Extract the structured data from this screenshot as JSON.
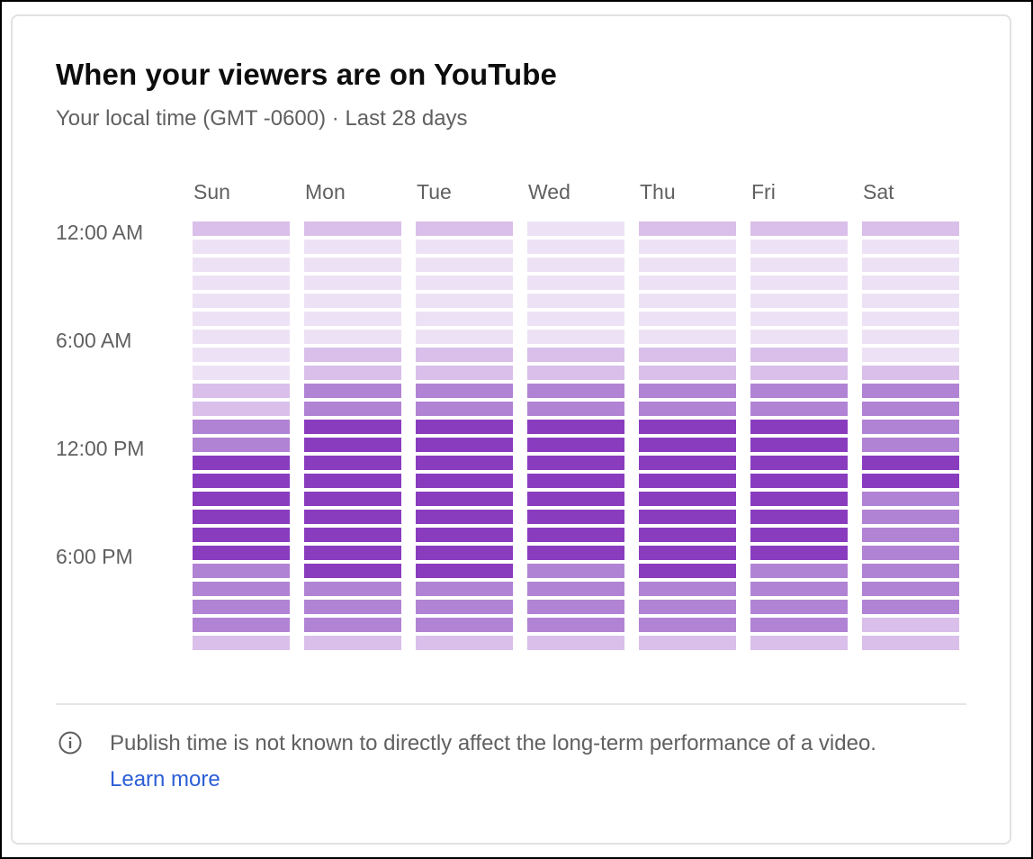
{
  "card": {
    "title": "When your viewers are on YouTube",
    "subtitle": "Your local time (GMT -0600) · Last 28 days"
  },
  "footer": {
    "notice": "Publish time is not known to directly affect the long-term performance of a video.",
    "link_label": "Learn more",
    "icon": "info-icon"
  },
  "chart_data": {
    "type": "heatmap",
    "title": "When your viewers are on YouTube",
    "subtitle": "Your local time (GMT -0600) · Last 28 days",
    "columns": [
      "Sun",
      "Mon",
      "Tue",
      "Wed",
      "Thu",
      "Fri",
      "Sat"
    ],
    "row_tick_labels": [
      "12:00 AM",
      "6:00 AM",
      "12:00 PM",
      "6:00 PM"
    ],
    "row_tick_positions": [
      0,
      6,
      12,
      18
    ],
    "rows_per_column": 24,
    "intensity_scale": [
      1,
      2,
      3,
      4
    ],
    "colors": {
      "1": "#ede2f5",
      "2": "#d9bfe9",
      "3": "#b183d4",
      "4": "#8a3cbf"
    },
    "values": [
      [
        2,
        1,
        1,
        1,
        1,
        1,
        1,
        1,
        1,
        2,
        2,
        3,
        3,
        4,
        4,
        4,
        4,
        4,
        4,
        3,
        3,
        3,
        3,
        2
      ],
      [
        2,
        1,
        1,
        1,
        1,
        1,
        1,
        2,
        2,
        3,
        3,
        4,
        4,
        4,
        4,
        4,
        4,
        4,
        4,
        4,
        3,
        3,
        3,
        2
      ],
      [
        2,
        1,
        1,
        1,
        1,
        1,
        1,
        2,
        2,
        3,
        3,
        4,
        4,
        4,
        4,
        4,
        4,
        4,
        4,
        4,
        3,
        3,
        3,
        2
      ],
      [
        1,
        1,
        1,
        1,
        1,
        1,
        1,
        2,
        2,
        3,
        3,
        4,
        4,
        4,
        4,
        4,
        4,
        4,
        4,
        3,
        3,
        3,
        3,
        2
      ],
      [
        2,
        1,
        1,
        1,
        1,
        1,
        1,
        2,
        2,
        3,
        3,
        4,
        4,
        4,
        4,
        4,
        4,
        4,
        4,
        4,
        3,
        3,
        3,
        2
      ],
      [
        2,
        1,
        1,
        1,
        1,
        1,
        1,
        2,
        2,
        3,
        3,
        4,
        4,
        4,
        4,
        4,
        4,
        4,
        4,
        3,
        3,
        3,
        3,
        2
      ],
      [
        2,
        1,
        1,
        1,
        1,
        1,
        1,
        1,
        2,
        3,
        3,
        3,
        3,
        4,
        4,
        3,
        3,
        3,
        3,
        3,
        3,
        3,
        2,
        2
      ]
    ]
  }
}
